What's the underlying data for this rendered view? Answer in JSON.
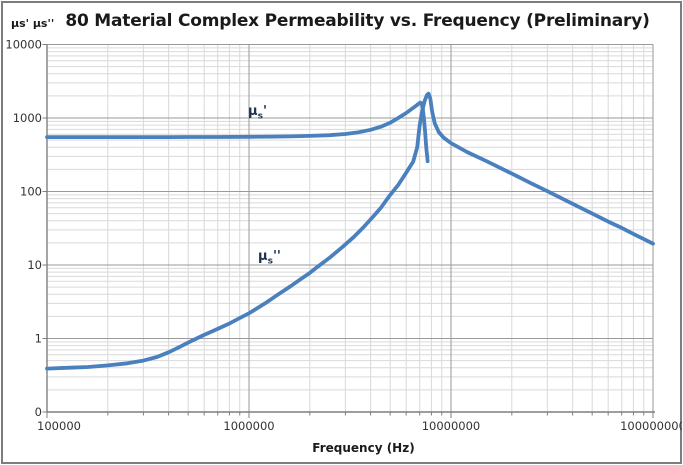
{
  "title": "80 Material Complex Permeability vs. Frequency (Preliminary)",
  "y_axis_title": "μs' μs''",
  "x_axis_title": "Frequency (Hz)",
  "annotations": {
    "mu_real": {
      "mu": "μ",
      "sub": "s",
      "primes": "'"
    },
    "mu_imag": {
      "mu": "μ",
      "sub": "s",
      "primes": "''"
    }
  },
  "colors": {
    "line": "#4a80bd",
    "grid_major": "#9a9a9a",
    "grid_minor": "#d9d9d9",
    "axis": "#7f7f7f",
    "tick_text": "#333333",
    "frame_border": "#7d7d7d"
  },
  "chart_data": {
    "type": "line",
    "title": "80 Material Complex Permeability vs. Frequency (Preliminary)",
    "xlabel": "Frequency (Hz)",
    "ylabel": "μs' μs''",
    "x_scale": "log",
    "y_scale": "log",
    "grid": "log major and minor gridlines on both axes",
    "legend": "inline curve annotations",
    "x_axis": {
      "min": 100000,
      "max": 100000000,
      "tick_values": [
        100000,
        1000000,
        10000000,
        100000000
      ],
      "tick_labels": [
        "100000",
        "1000000",
        "10000000",
        "100000000"
      ]
    },
    "y_axis": {
      "min": 0.1,
      "max": 10000,
      "tick_values": [
        10000,
        1000,
        100,
        10,
        1,
        0.1
      ],
      "tick_labels": [
        "10000",
        "1000",
        "100",
        "10",
        "1",
        "0"
      ]
    },
    "series": [
      {
        "name": "μs' (real permeability)",
        "points": [
          [
            100000,
            550
          ],
          [
            200000,
            550
          ],
          [
            300000,
            550
          ],
          [
            400000,
            550
          ],
          [
            500000,
            551
          ],
          [
            700000,
            552
          ],
          [
            1000000,
            555
          ],
          [
            1300000,
            558
          ],
          [
            1600000,
            562
          ],
          [
            2000000,
            570
          ],
          [
            2500000,
            584
          ],
          [
            3000000,
            605
          ],
          [
            3500000,
            640
          ],
          [
            4000000,
            690
          ],
          [
            4500000,
            762
          ],
          [
            5000000,
            860
          ],
          [
            5500000,
            1010
          ],
          [
            6000000,
            1170
          ],
          [
            6400000,
            1330
          ],
          [
            6700000,
            1460
          ],
          [
            6900000,
            1560
          ],
          [
            7050000,
            1620
          ],
          [
            7150000,
            1580
          ],
          [
            7250000,
            1340
          ],
          [
            7350000,
            960
          ],
          [
            7450000,
            620
          ],
          [
            7550000,
            390
          ],
          [
            7620000,
            300
          ],
          [
            7660000,
            258
          ]
        ]
      },
      {
        "name": "μs'' (imaginary permeability)",
        "points": [
          [
            100000,
            0.39
          ],
          [
            130000,
            0.4
          ],
          [
            160000,
            0.41
          ],
          [
            200000,
            0.43
          ],
          [
            250000,
            0.46
          ],
          [
            300000,
            0.5
          ],
          [
            350000,
            0.56
          ],
          [
            400000,
            0.65
          ],
          [
            450000,
            0.76
          ],
          [
            500000,
            0.88
          ],
          [
            550000,
            1.0
          ],
          [
            600000,
            1.12
          ],
          [
            700000,
            1.35
          ],
          [
            800000,
            1.6
          ],
          [
            900000,
            1.9
          ],
          [
            1000000,
            2.2
          ],
          [
            1200000,
            3.0
          ],
          [
            1400000,
            4.0
          ],
          [
            1600000,
            5.1
          ],
          [
            1800000,
            6.4
          ],
          [
            2000000,
            7.8
          ],
          [
            2200000,
            9.6
          ],
          [
            2500000,
            12.5
          ],
          [
            2900000,
            17.5
          ],
          [
            3300000,
            24
          ],
          [
            3700000,
            33
          ],
          [
            4100000,
            45
          ],
          [
            4500000,
            60
          ],
          [
            5000000,
            90
          ],
          [
            5500000,
            125
          ],
          [
            6000000,
            180
          ],
          [
            6500000,
            255
          ],
          [
            6800000,
            400
          ],
          [
            7000000,
            800
          ],
          [
            7200000,
            1250
          ],
          [
            7400000,
            1700
          ],
          [
            7600000,
            2050
          ],
          [
            7750000,
            2150
          ],
          [
            7900000,
            1850
          ],
          [
            8050000,
            1250
          ],
          [
            8300000,
            850
          ],
          [
            8700000,
            640
          ],
          [
            9200000,
            540
          ],
          [
            10000000,
            455
          ],
          [
            12000000,
            345
          ],
          [
            15000000,
            258
          ],
          [
            20000000,
            175
          ],
          [
            25000000,
            129
          ],
          [
            30000000,
            101
          ],
          [
            40000000,
            68
          ],
          [
            50000000,
            50
          ],
          [
            60000000,
            39
          ],
          [
            70000000,
            32
          ],
          [
            80000000,
            26.5
          ],
          [
            90000000,
            22.5
          ],
          [
            100000000,
            19.5
          ]
        ]
      }
    ]
  }
}
